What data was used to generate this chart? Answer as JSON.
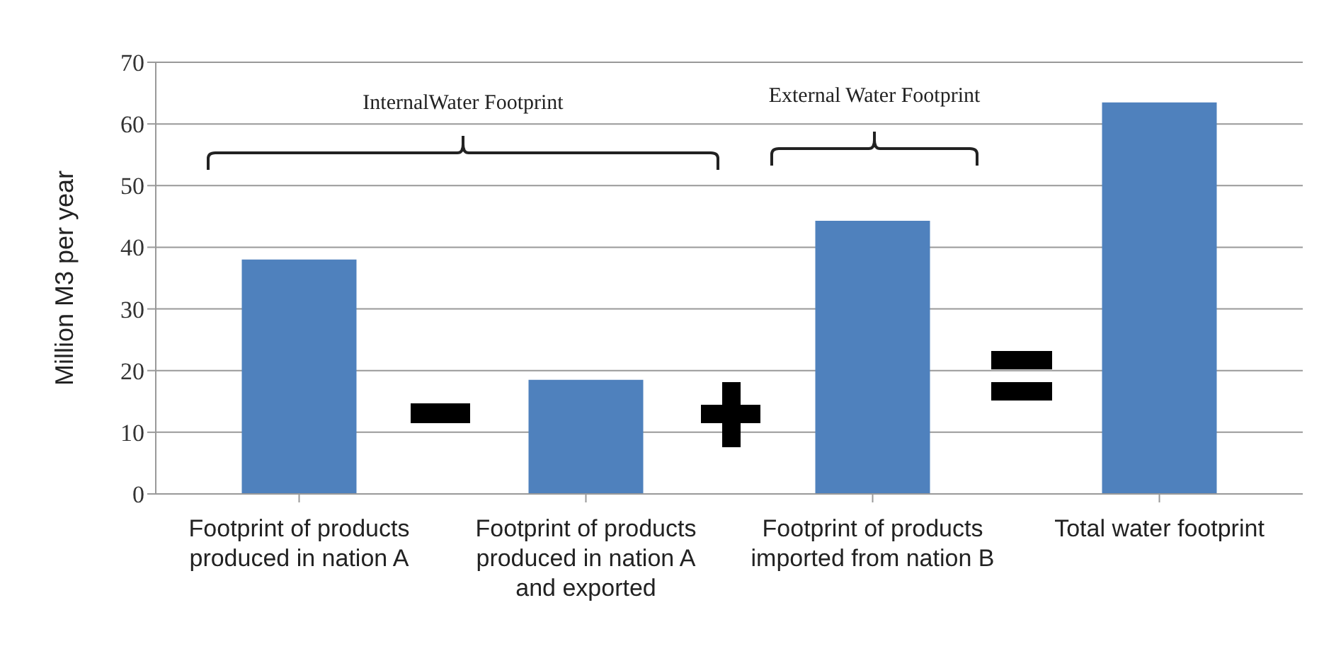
{
  "chart_data": {
    "type": "bar",
    "ylabel": "Million M3 per year",
    "categories": [
      "Footprint of products produced in nation A",
      "Footprint of products produced in nation A and exported",
      "Footprint of products imported from nation B",
      "Total water footprint"
    ],
    "values": [
      38,
      18.5,
      44.3,
      63.5
    ],
    "color": "#4f81bd",
    "ylim": [
      0,
      70
    ],
    "yticks": [
      0,
      10,
      20,
      30,
      40,
      50,
      60,
      70
    ],
    "grid": "y",
    "annotations": [
      "InternalWater Footprint",
      "External Water Footprint"
    ]
  }
}
